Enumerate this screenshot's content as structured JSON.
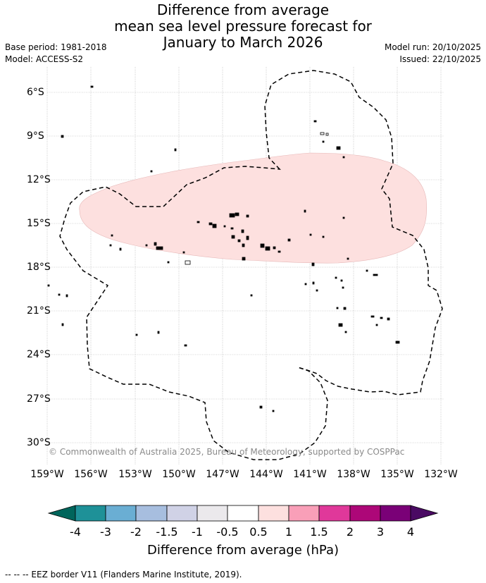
{
  "title": {
    "line1": "Difference from average",
    "line2": "mean sea level pressure forecast for",
    "line3": "January to March 2026"
  },
  "meta": {
    "base_period": "Base period: 1981-2018",
    "model": "Model: ACCESS-S2",
    "model_run": "Model run: 20/10/2025",
    "issued": "Issued: 22/10/2025"
  },
  "map": {
    "lat_labels": [
      "6°S",
      "9°S",
      "12°S",
      "15°S",
      "18°S",
      "21°S",
      "24°S",
      "27°S",
      "30°S"
    ],
    "lon_labels": [
      "159°W",
      "156°W",
      "153°W",
      "150°W",
      "147°W",
      "144°W",
      "141°W",
      "138°W",
      "135°W",
      "132°W"
    ],
    "credit": "© Commonwealth of Australia 2025, Bureau of Meteorology, supported by COSPPac",
    "anomaly_region_value": "0.5 to 1 hPa"
  },
  "colorbar": {
    "ticks": [
      "-4",
      "-3",
      "-2",
      "-1.5",
      "-1",
      "-0.5",
      "0.5",
      "1",
      "1.5",
      "2",
      "3",
      "4"
    ],
    "colors": [
      "#00655b",
      "#1e9198",
      "#6aaed3",
      "#a7bedf",
      "#d0d2e6",
      "#ebe9ec",
      "#ffffff",
      "#fde0df",
      "#f99fb8",
      "#e0389a",
      "#ad0778",
      "#7a0177",
      "#4a0a63"
    ],
    "label": "Difference from average (hPa)"
  },
  "footer": "--  --  -- EEZ border V11 (Flanders Marine Institute, 2019)."
}
